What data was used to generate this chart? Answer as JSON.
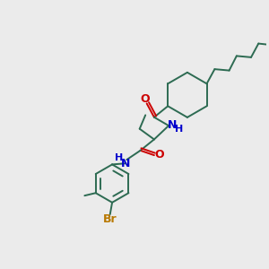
{
  "bg_color": "#ebebeb",
  "bond_color": "#2d6b52",
  "N_color": "#0000cc",
  "O_color": "#cc0000",
  "Br_color": "#b87800",
  "lw": 1.4,
  "figsize": [
    3.0,
    3.0
  ],
  "dpi": 100,
  "xlim": [
    0,
    10
  ],
  "ylim": [
    0,
    10
  ]
}
